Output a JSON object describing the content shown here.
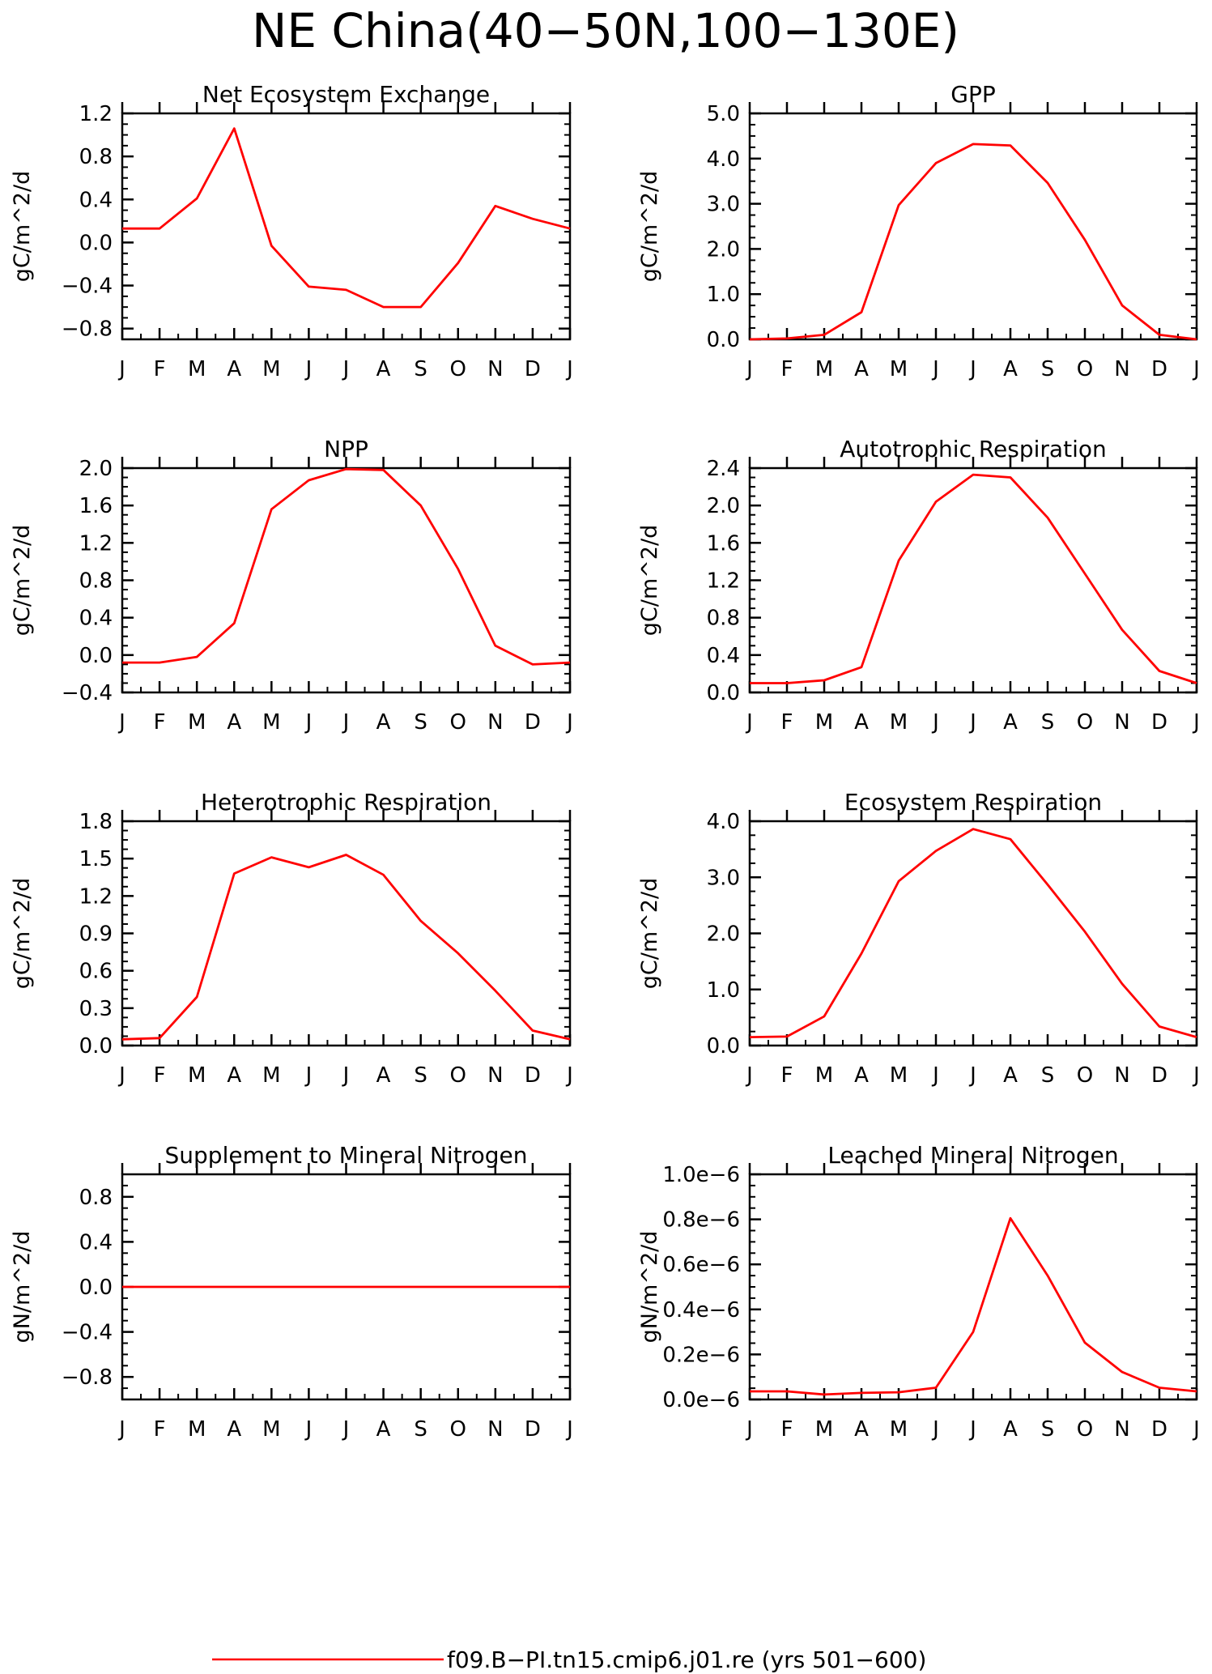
{
  "figure": {
    "title": "NE China(40−50N,100−130E)",
    "legend_label": "f09.B−PI.tn15.cmip6.j01.re (yrs 501−600)",
    "line_color": "#ff0000"
  },
  "chart_data": [
    {
      "type": "line",
      "title": "Net Ecosystem Exchange",
      "ylabel": "gC/m^2/d",
      "categories": [
        "J",
        "F",
        "M",
        "A",
        "M",
        "J",
        "J",
        "A",
        "S",
        "O",
        "N",
        "D",
        "J"
      ],
      "ylim": [
        -0.9,
        1.2
      ],
      "yticks": [
        1.2,
        0.8,
        0.4,
        0.0,
        -0.4,
        -0.8
      ],
      "ytick_labels": [
        "1.2",
        "0.8",
        "0.4",
        "0.0",
        "−0.4",
        "−0.8"
      ],
      "values": [
        0.13,
        0.13,
        0.41,
        1.06,
        -0.03,
        -0.41,
        -0.44,
        -0.6,
        -0.6,
        -0.19,
        0.34,
        0.22,
        0.13
      ]
    },
    {
      "type": "line",
      "title": "GPP",
      "ylabel": "gC/m^2/d",
      "categories": [
        "J",
        "F",
        "M",
        "A",
        "M",
        "J",
        "J",
        "A",
        "S",
        "O",
        "N",
        "D",
        "J"
      ],
      "ylim": [
        0.0,
        5.0
      ],
      "yticks": [
        5.0,
        4.0,
        3.0,
        2.0,
        1.0,
        0.0
      ],
      "ytick_labels": [
        "5.0",
        "4.0",
        "3.0",
        "2.0",
        "1.0",
        "0.0"
      ],
      "values": [
        0.0,
        0.02,
        0.1,
        0.6,
        2.97,
        3.9,
        4.32,
        4.29,
        3.46,
        2.2,
        0.75,
        0.1,
        0.0
      ]
    },
    {
      "type": "line",
      "title": "NPP",
      "ylabel": "gC/m^2/d",
      "categories": [
        "J",
        "F",
        "M",
        "A",
        "M",
        "J",
        "J",
        "A",
        "S",
        "O",
        "N",
        "D",
        "J"
      ],
      "ylim": [
        -0.4,
        2.0
      ],
      "yticks": [
        2.0,
        1.6,
        1.2,
        0.8,
        0.4,
        0.0,
        -0.4
      ],
      "ytick_labels": [
        "2.0",
        "1.6",
        "1.2",
        "0.8",
        "0.4",
        "0.0",
        "−0.4"
      ],
      "values": [
        -0.08,
        -0.08,
        -0.02,
        0.34,
        1.56,
        1.87,
        1.99,
        1.98,
        1.6,
        0.92,
        0.1,
        -0.1,
        -0.08
      ]
    },
    {
      "type": "line",
      "title": "Autotrophic Respiration",
      "ylabel": "gC/m^2/d",
      "categories": [
        "J",
        "F",
        "M",
        "A",
        "M",
        "J",
        "J",
        "A",
        "S",
        "O",
        "N",
        "D",
        "J"
      ],
      "ylim": [
        0.0,
        2.4
      ],
      "yticks": [
        2.4,
        2.0,
        1.6,
        1.2,
        0.8,
        0.4,
        0.0
      ],
      "ytick_labels": [
        "2.4",
        "2.0",
        "1.6",
        "1.2",
        "0.8",
        "0.4",
        "0.0"
      ],
      "values": [
        0.1,
        0.1,
        0.13,
        0.27,
        1.41,
        2.04,
        2.33,
        2.3,
        1.87,
        1.27,
        0.67,
        0.23,
        0.1
      ]
    },
    {
      "type": "line",
      "title": "Heterotrophic Respiration",
      "ylabel": "gC/m^2/d",
      "categories": [
        "J",
        "F",
        "M",
        "A",
        "M",
        "J",
        "J",
        "A",
        "S",
        "O",
        "N",
        "D",
        "J"
      ],
      "ylim": [
        0.0,
        1.8
      ],
      "yticks": [
        1.8,
        1.5,
        1.2,
        0.9,
        0.6,
        0.3,
        0.0
      ],
      "ytick_labels": [
        "1.8",
        "1.5",
        "1.2",
        "0.9",
        "0.6",
        "0.3",
        "0.0"
      ],
      "values": [
        0.05,
        0.06,
        0.39,
        1.38,
        1.51,
        1.43,
        1.53,
        1.37,
        1.0,
        0.74,
        0.44,
        0.12,
        0.05
      ]
    },
    {
      "type": "line",
      "title": "Ecosystem Respiration",
      "ylabel": "gC/m^2/d",
      "categories": [
        "J",
        "F",
        "M",
        "A",
        "M",
        "J",
        "J",
        "A",
        "S",
        "O",
        "N",
        "D",
        "J"
      ],
      "ylim": [
        0.0,
        4.0
      ],
      "yticks": [
        4.0,
        3.0,
        2.0,
        1.0,
        0.0
      ],
      "ytick_labels": [
        "4.0",
        "3.0",
        "2.0",
        "1.0",
        "0.0"
      ],
      "values": [
        0.15,
        0.16,
        0.52,
        1.64,
        2.93,
        3.47,
        3.86,
        3.68,
        2.87,
        2.03,
        1.1,
        0.34,
        0.15
      ]
    },
    {
      "type": "line",
      "title": "Supplement to Mineral Nitrogen",
      "ylabel": "gN/m^2/d",
      "categories": [
        "J",
        "F",
        "M",
        "A",
        "M",
        "J",
        "J",
        "A",
        "S",
        "O",
        "N",
        "D",
        "J"
      ],
      "ylim": [
        -1.0,
        1.0
      ],
      "yticks": [
        0.8,
        0.4,
        0.0,
        -0.4,
        -0.8
      ],
      "ytick_labels": [
        "0.8",
        "0.4",
        "0.0",
        "−0.4",
        "−0.8"
      ],
      "values": [
        0,
        0,
        0,
        0,
        0,
        0,
        0,
        0,
        0,
        0,
        0,
        0,
        0
      ]
    },
    {
      "type": "line",
      "title": "Leached Mineral Nitrogen",
      "ylabel": "gN/m^2/d",
      "categories": [
        "J",
        "F",
        "M",
        "A",
        "M",
        "J",
        "J",
        "A",
        "S",
        "O",
        "N",
        "D",
        "J"
      ],
      "ylim": [
        0.0,
        1e-06
      ],
      "yticks": [
        1e-06,
        8e-07,
        6e-07,
        4e-07,
        2e-07,
        0.0
      ],
      "ytick_labels": [
        "1.0e−6",
        "0.8e−6",
        "0.6e−6",
        "0.4e−6",
        "0.2e−6",
        "0.0e−6"
      ],
      "values": [
        3.6e-08,
        3.6e-08,
        2.2e-08,
        2.9e-08,
        3.2e-08,
        5.2e-08,
        3e-07,
        8.05e-07,
        5.5e-07,
        2.52e-07,
        1.22e-07,
        5.2e-08,
        3.6e-08
      ]
    }
  ]
}
